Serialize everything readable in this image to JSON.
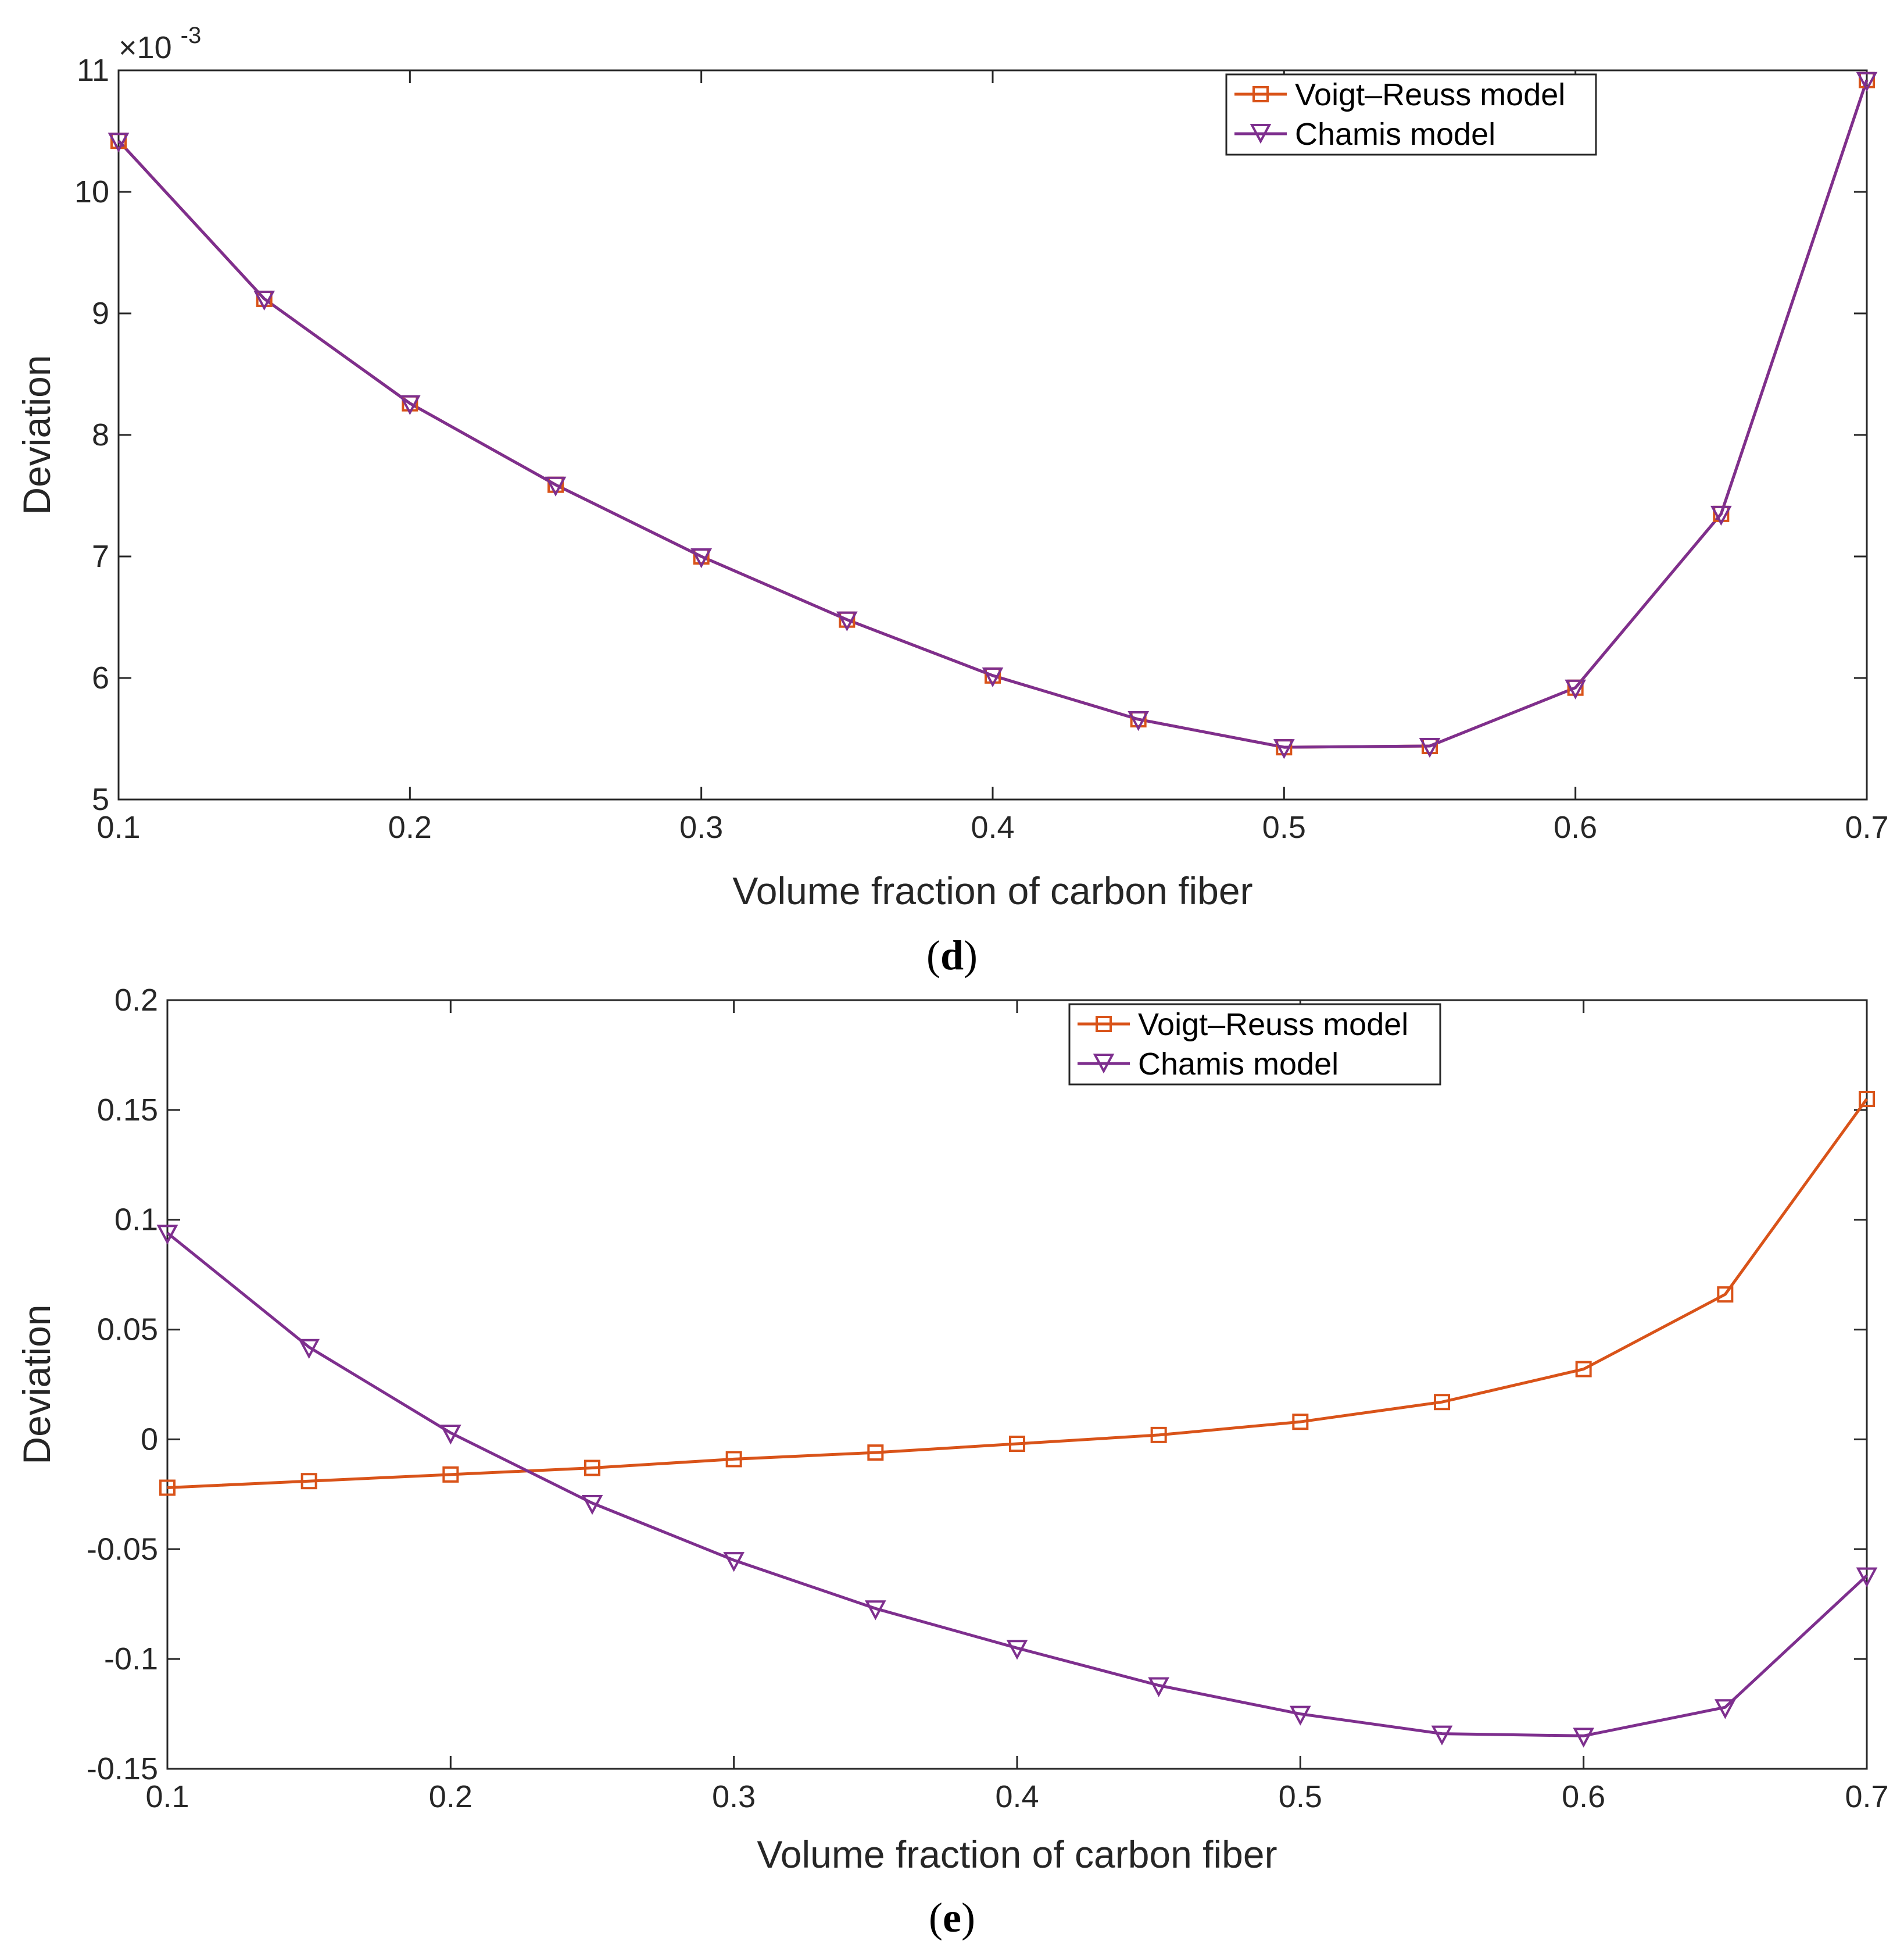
{
  "chart_data": [
    {
      "type": "line",
      "panel": "d",
      "caption_letter": "d",
      "xlabel": "Volume fraction of carbon fiber",
      "ylabel": "Deviation",
      "xlim": [
        0.1,
        0.7
      ],
      "ylim": [
        5,
        11
      ],
      "exponent_base": "×10",
      "exponent_power": "-3",
      "x_ticks": [
        "0.1",
        "0.2",
        "0.3",
        "0.4",
        "0.5",
        "0.6",
        "0.7"
      ],
      "y_ticks": [
        "5",
        "6",
        "7",
        "8",
        "9",
        "10",
        "11"
      ],
      "x": [
        0.1,
        0.15,
        0.2,
        0.25,
        0.3,
        0.35,
        0.4,
        0.45,
        0.5,
        0.55,
        0.6,
        0.65,
        0.7
      ],
      "legend_position": "top-right",
      "series": [
        {
          "name": "Voigt–Reuss model",
          "marker": "square",
          "color": "#D95319",
          "values": [
            10.42,
            9.12,
            8.26,
            7.59,
            7.0,
            6.48,
            6.02,
            5.66,
            5.43,
            5.44,
            5.92,
            7.35,
            10.92
          ]
        },
        {
          "name": "Chamis model",
          "marker": "triangle-down",
          "color": "#7E2F8E",
          "values": [
            10.42,
            9.12,
            8.26,
            7.59,
            7.0,
            6.48,
            6.02,
            5.66,
            5.43,
            5.44,
            5.92,
            7.35,
            10.92
          ]
        }
      ]
    },
    {
      "type": "line",
      "panel": "e",
      "caption_letter": "e",
      "xlabel": "Volume fraction of carbon fiber",
      "ylabel": "Deviation",
      "xlim": [
        0.1,
        0.7
      ],
      "ylim": [
        -0.15,
        0.2
      ],
      "x_ticks": [
        "0.1",
        "0.2",
        "0.3",
        "0.4",
        "0.5",
        "0.6",
        "0.7"
      ],
      "y_ticks": [
        "-0.15",
        "-0.1",
        "-0.05",
        "0",
        "0.05",
        "0.1",
        "0.15",
        "0.2"
      ],
      "x": [
        0.1,
        0.15,
        0.2,
        0.25,
        0.3,
        0.35,
        0.4,
        0.45,
        0.5,
        0.55,
        0.6,
        0.65,
        0.7
      ],
      "legend_position": "top-right",
      "series": [
        {
          "name": "Voigt–Reuss model",
          "marker": "square",
          "color": "#D95319",
          "values": [
            -0.022,
            -0.019,
            -0.016,
            -0.013,
            -0.009,
            -0.006,
            -0.002,
            0.002,
            0.008,
            0.017,
            0.032,
            0.066,
            0.155
          ]
        },
        {
          "name": "Chamis model",
          "marker": "triangle-down",
          "color": "#7E2F8E",
          "values": [
            0.094,
            0.042,
            0.003,
            -0.029,
            -0.055,
            -0.077,
            -0.095,
            -0.112,
            -0.125,
            -0.134,
            -0.135,
            -0.122,
            -0.062
          ]
        }
      ]
    }
  ]
}
